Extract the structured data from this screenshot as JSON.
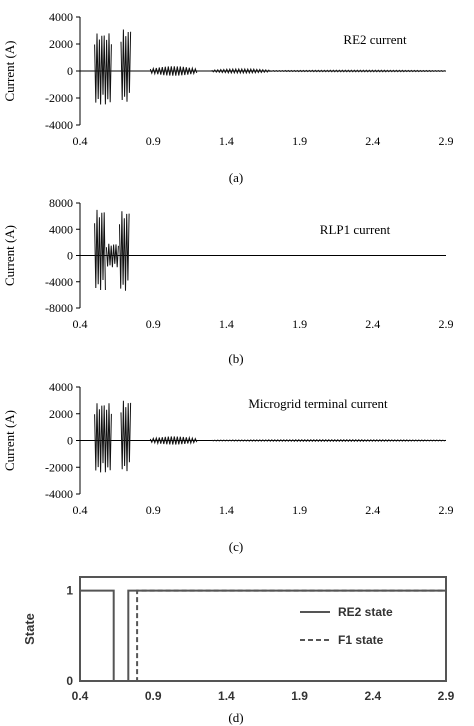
{
  "chart_data": [
    {
      "type": "line",
      "panel_label": "(a)",
      "ylabel": "Current (A)",
      "annotation": "RE2 current",
      "xlim": [
        0.4,
        2.9
      ],
      "ylim": [
        -4000,
        4000
      ],
      "xticks": [
        "0.4",
        "0.9",
        "1.4",
        "1.9",
        "2.4",
        "2.9"
      ],
      "yticks": [
        "4000",
        "2000",
        "0",
        "-2000",
        "-4000"
      ],
      "bursts": [
        {
          "start": 0.5,
          "end": 0.62,
          "max": 2800,
          "min": -2500
        },
        {
          "start": 0.68,
          "end": 0.75,
          "max": 3100,
          "min": -2300
        }
      ],
      "ripples": [
        {
          "start": 0.88,
          "end": 1.2,
          "amp": 350
        },
        {
          "start": 1.3,
          "end": 1.7,
          "amp": 150
        },
        {
          "start": 1.7,
          "end": 2.9,
          "amp": 60
        }
      ]
    },
    {
      "type": "line",
      "panel_label": "(b)",
      "ylabel": "Current (A)",
      "annotation": "RLP1 current",
      "xlim": [
        0.4,
        2.9
      ],
      "ylim": [
        -8000,
        8000
      ],
      "xticks": [
        "0.4",
        "0.9",
        "1.4",
        "1.9",
        "2.4",
        "2.9"
      ],
      "yticks": [
        "8000",
        "4000",
        "0",
        "-4000",
        "-8000"
      ],
      "bursts": [
        {
          "start": 0.5,
          "end": 0.58,
          "max": 7000,
          "min": -5300
        },
        {
          "start": 0.58,
          "end": 0.67,
          "max": 1800,
          "min": -1800
        },
        {
          "start": 0.67,
          "end": 0.74,
          "max": 6800,
          "min": -5400
        }
      ],
      "ripples": []
    },
    {
      "type": "line",
      "panel_label": "(c)",
      "ylabel": "Current (A)",
      "annotation": "Microgrid terminal current",
      "xlim": [
        0.4,
        2.9
      ],
      "ylim": [
        -4000,
        4000
      ],
      "xticks": [
        "0.4",
        "0.9",
        "1.4",
        "1.9",
        "2.4",
        "2.9"
      ],
      "yticks": [
        "4000",
        "2000",
        "0",
        "-2000",
        "-4000"
      ],
      "bursts": [
        {
          "start": 0.5,
          "end": 0.62,
          "max": 2800,
          "min": -2400
        },
        {
          "start": 0.68,
          "end": 0.75,
          "max": 3000,
          "min": -2300
        }
      ],
      "ripples": [
        {
          "start": 0.88,
          "end": 1.2,
          "amp": 300
        },
        {
          "start": 1.3,
          "end": 2.9,
          "amp": 60
        }
      ]
    },
    {
      "type": "line",
      "panel_label": "(d)",
      "ylabel": "State",
      "xlim": [
        0.4,
        2.9
      ],
      "ylim": [
        0,
        1.15
      ],
      "xticks": [
        "0.4",
        "0.9",
        "1.4",
        "1.9",
        "2.4",
        "2.9"
      ],
      "yticks": [
        "1",
        "0"
      ],
      "series": [
        {
          "name": "RE2 state",
          "style": "solid",
          "x": [
            0.4,
            0.63,
            0.63,
            0.73,
            0.73,
            2.9
          ],
          "y": [
            1,
            1,
            0,
            0,
            1,
            1
          ]
        },
        {
          "name": "F1 state",
          "style": "dashed",
          "x": [
            0.4,
            0.79,
            0.79,
            2.9
          ],
          "y": [
            0,
            0,
            1,
            1
          ]
        }
      ],
      "legend": "right"
    }
  ]
}
